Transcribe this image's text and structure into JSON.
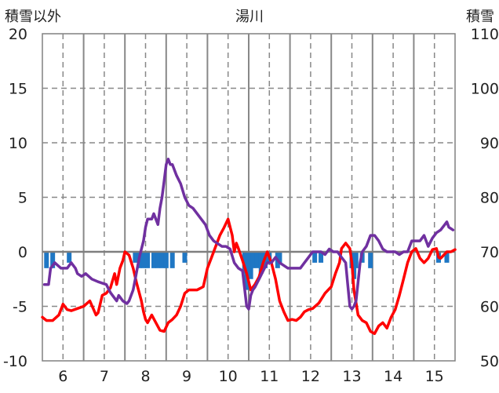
{
  "chart_data": {
    "type": "line",
    "title": "湯川",
    "y_left_label": "積雪以外",
    "y_right_label": "積雪",
    "y_left_ticks": [
      "20",
      "15",
      "10",
      "5",
      "0",
      "-5",
      "-10"
    ],
    "y_right_ticks": [
      "110",
      "100",
      "90",
      "80",
      "70",
      "60",
      "50"
    ],
    "x_ticks": [
      "6",
      "7",
      "8",
      "9",
      "10",
      "11",
      "12",
      "13",
      "14",
      "15"
    ],
    "ylim_left": [
      -10,
      20
    ],
    "ylim_right": [
      50,
      110
    ],
    "xlim": [
      5.5,
      15.5
    ],
    "grid": true,
    "colors": {
      "temperature": "#ff0000",
      "snow_depth": "#7030a0",
      "precip": "#1f77c4",
      "zero_line": "#7f7f7f"
    },
    "series": [
      {
        "key": "temperature",
        "x": [
          5.5,
          5.6,
          5.75,
          5.9,
          6.0,
          6.1,
          6.2,
          6.35,
          6.5,
          6.65,
          6.8,
          6.85,
          6.95,
          7.05,
          7.15,
          7.25,
          7.3,
          7.38,
          7.45,
          7.5,
          7.6,
          7.7,
          7.78,
          7.85,
          7.9,
          7.95,
          8.0,
          8.05,
          8.15,
          8.25,
          8.35,
          8.45,
          8.55,
          8.65,
          8.75,
          8.85,
          8.95,
          9.05,
          9.25,
          9.4,
          9.5,
          9.6,
          9.7,
          9.8,
          9.9,
          10.0,
          10.1,
          10.15,
          10.2,
          10.25,
          10.35,
          10.45,
          10.55,
          10.65,
          10.75,
          10.85,
          10.95,
          11.05,
          11.15,
          11.25,
          11.35,
          11.45,
          11.55,
          11.65,
          11.75,
          11.85,
          11.95,
          12.05,
          12.2,
          12.35,
          12.5,
          12.6,
          12.7,
          12.75,
          12.85,
          12.95,
          13.0,
          13.05,
          13.15,
          13.25,
          13.35,
          13.45,
          13.55,
          13.65,
          13.75,
          13.85,
          13.9,
          13.95,
          14.05,
          14.15,
          14.25,
          14.35,
          14.45,
          14.55,
          14.65,
          14.75,
          14.85,
          14.95,
          15.05,
          15.1,
          15.15,
          15.2,
          15.3,
          15.4,
          15.5
        ],
        "y": [
          -6,
          -6.3,
          -6.3,
          -5.8,
          -4.8,
          -5.3,
          -5.4,
          -5.2,
          -5.0,
          -4.5,
          -5.8,
          -5.6,
          -4.0,
          -3.8,
          -3.3,
          -2.0,
          -3.0,
          -1.5,
          -0.8,
          0.0,
          -0.3,
          -1.5,
          -2.8,
          -3.8,
          -4.5,
          -5.5,
          -6.2,
          -6.5,
          -5.8,
          -6.5,
          -7.2,
          -7.3,
          -6.5,
          -6.2,
          -5.8,
          -5.0,
          -3.8,
          -3.5,
          -3.5,
          -3.2,
          -1.5,
          -0.5,
          0.5,
          1.5,
          2.2,
          3.0,
          1.5,
          0.0,
          0.8,
          0.3,
          -0.8,
          -2.0,
          -3.5,
          -3.0,
          -2.3,
          -1.0,
          0.0,
          -1.0,
          -2.5,
          -4.5,
          -5.5,
          -6.3,
          -6.2,
          -6.3,
          -6.0,
          -5.5,
          -5.3,
          -5.2,
          -4.7,
          -3.8,
          -3.2,
          -2.0,
          -1.0,
          0.3,
          0.8,
          0.3,
          -1.0,
          -3.5,
          -5.8,
          -6.3,
          -6.5,
          -7.3,
          -7.5,
          -6.8,
          -6.5,
          -7.0,
          -6.5,
          -6.0,
          -5.3,
          -4.0,
          -2.5,
          -1.0,
          0.0,
          0.3,
          -0.6,
          -1.0,
          -0.6,
          0.2,
          0.3,
          -0.5,
          -0.6,
          -0.4,
          0.0,
          0.0,
          0.2
        ]
      },
      {
        "key": "snow_depth",
        "x": [
          5.55,
          5.65,
          5.7,
          5.8,
          5.95,
          6.1,
          6.2,
          6.3,
          6.35,
          6.45,
          6.55,
          6.7,
          6.85,
          7.05,
          7.15,
          7.2,
          7.3,
          7.35,
          7.45,
          7.55,
          7.6,
          7.7,
          7.75,
          7.85,
          7.95,
          8.0,
          8.05,
          8.15,
          8.2,
          8.3,
          8.35,
          8.4,
          8.45,
          8.5,
          8.55,
          8.6,
          8.65,
          8.75,
          8.85,
          8.95,
          9.05,
          9.15,
          9.25,
          9.35,
          9.45,
          9.55,
          9.65,
          9.75,
          9.85,
          9.95,
          10.05,
          10.15,
          10.25,
          10.35,
          10.45,
          10.5,
          10.55,
          10.6,
          10.65,
          10.75,
          10.85,
          10.95,
          11.05,
          11.15,
          11.25,
          11.35,
          11.45,
          11.6,
          11.75,
          11.85,
          11.95,
          12.05,
          12.15,
          12.25,
          12.35,
          12.45,
          12.55,
          12.65,
          12.75,
          12.85,
          12.9,
          12.95,
          13.0,
          13.05,
          13.1,
          13.2,
          13.25,
          13.35,
          13.45,
          13.55,
          13.65,
          13.75,
          13.85,
          13.95,
          14.05,
          14.15,
          14.25,
          14.35,
          14.45,
          14.55,
          14.65,
          14.75,
          14.85,
          14.95,
          15.05,
          15.15,
          15.25,
          15.3,
          15.35,
          15.45
        ],
        "y": [
          64,
          64,
          67,
          68,
          67,
          67,
          68,
          67,
          66,
          65.5,
          66,
          65,
          64.5,
          64,
          62.5,
          62,
          61,
          62,
          61,
          60.5,
          61,
          63,
          65,
          69,
          72,
          74.5,
          76,
          76,
          77,
          75,
          78,
          80,
          83,
          86,
          87,
          86,
          86,
          84,
          82.5,
          80,
          78.5,
          78,
          77,
          76,
          75,
          73,
          72,
          71.5,
          71,
          71,
          70.5,
          68,
          67,
          66.5,
          60,
          59.5,
          62,
          63,
          63.5,
          65,
          66.5,
          68,
          68,
          69,
          68,
          67.5,
          67,
          67,
          67,
          68,
          69,
          70,
          70,
          70,
          69.5,
          70.5,
          70,
          70,
          69,
          68,
          64,
          60,
          59.5,
          60,
          61,
          68,
          70,
          71,
          73,
          73,
          72,
          70.5,
          70,
          70,
          70,
          69.5,
          70,
          70,
          72,
          72,
          72,
          73,
          71,
          72.5,
          73.5,
          74,
          75,
          75.5,
          74.5,
          74
        ]
      }
    ],
    "precip": [
      {
        "x": 5.6,
        "v": 1.5
      },
      {
        "x": 5.75,
        "v": 1.5
      },
      {
        "x": 6.15,
        "v": 1.0
      },
      {
        "x": 7.75,
        "v": 1.0
      },
      {
        "x": 7.85,
        "v": 1.5
      },
      {
        "x": 7.95,
        "v": 1.5
      },
      {
        "x": 8.05,
        "v": 1.5
      },
      {
        "x": 8.2,
        "v": 1.5
      },
      {
        "x": 8.3,
        "v": 1.5
      },
      {
        "x": 8.4,
        "v": 1.5
      },
      {
        "x": 8.5,
        "v": 1.5
      },
      {
        "x": 8.65,
        "v": 1.5
      },
      {
        "x": 8.95,
        "v": 1.0
      },
      {
        "x": 10.4,
        "v": 2.0
      },
      {
        "x": 10.45,
        "v": 3.5
      },
      {
        "x": 10.55,
        "v": 2.5
      },
      {
        "x": 10.6,
        "v": 1.5
      },
      {
        "x": 10.7,
        "v": 1.5
      },
      {
        "x": 10.8,
        "v": 2.0
      },
      {
        "x": 10.9,
        "v": 1.5
      },
      {
        "x": 11.0,
        "v": 1.0
      },
      {
        "x": 11.2,
        "v": 1.5
      },
      {
        "x": 11.25,
        "v": 1.0
      },
      {
        "x": 12.1,
        "v": 1.0
      },
      {
        "x": 12.25,
        "v": 1.0
      },
      {
        "x": 13.0,
        "v": 1.5
      },
      {
        "x": 13.05,
        "v": 2.5
      },
      {
        "x": 13.1,
        "v": 1.5
      },
      {
        "x": 13.25,
        "v": 1.0
      },
      {
        "x": 13.45,
        "v": 1.5
      },
      {
        "x": 15.1,
        "v": 1.0
      },
      {
        "x": 15.3,
        "v": 1.0
      }
    ]
  }
}
